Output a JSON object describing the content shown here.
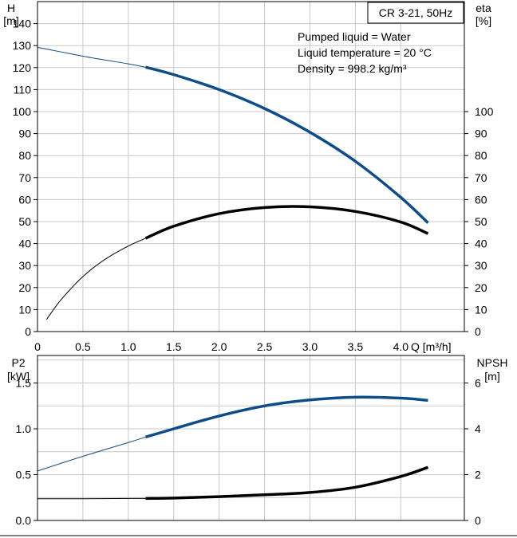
{
  "chart_data": [
    {
      "type": "line",
      "title": "CR 3-21, 50Hz",
      "annotations": [
        "Pumped liquid = Water",
        "Liquid temperature = 20 °C",
        "Density = 998.2 kg/m³"
      ],
      "xlabel": "Q [m³/h]",
      "ylabel_left": [
        "H",
        "[m]"
      ],
      "ylabel_right": [
        "eta",
        "[%]"
      ],
      "xlim": [
        0,
        4.7
      ],
      "ylim_left": [
        0,
        150
      ],
      "ylim_right": [
        0,
        150
      ],
      "x_ticks": [
        0,
        0.5,
        1.0,
        1.5,
        2.0,
        2.5,
        3.0,
        3.5,
        4.0
      ],
      "x_tick_labels": [
        "0",
        "0.5",
        "1.0",
        "1.5",
        "2.0",
        "2.5",
        "3.0",
        "3.5",
        "4.0"
      ],
      "y_left_ticks": [
        0,
        10,
        20,
        30,
        40,
        50,
        60,
        70,
        80,
        90,
        100,
        110,
        120,
        130,
        140
      ],
      "y_right_ticks": [
        0,
        10,
        20,
        30,
        40,
        50,
        60,
        70,
        80,
        90,
        100
      ],
      "grid": true,
      "series": [
        {
          "axis": "left",
          "color": "#0f4c8a",
          "x": [
            0.0,
            0.25,
            0.5,
            0.75,
            1.0,
            1.19,
            1.5,
            2.0,
            2.5,
            3.0,
            3.5,
            4.0,
            4.3
          ],
          "values": [
            129.2,
            127.2,
            125.2,
            123.4,
            121.7,
            120.2,
            116.8,
            110.0,
            101.4,
            90.6,
            77.4,
            61.0,
            49.4
          ],
          "thin_until": 1.19
        },
        {
          "axis": "right",
          "color": "#000000",
          "x": [
            0.1,
            0.25,
            0.5,
            0.75,
            1.0,
            1.19,
            1.5,
            2.0,
            2.5,
            3.0,
            3.5,
            4.0,
            4.3
          ],
          "values": [
            5.5,
            14.0,
            25.0,
            33.0,
            38.9,
            42.4,
            47.9,
            53.6,
            56.4,
            56.7,
            54.6,
            49.8,
            44.5
          ],
          "thin_until": 1.19
        }
      ]
    },
    {
      "type": "line",
      "xlim": [
        0,
        4.7
      ],
      "ylabel_left": [
        "P2",
        "[kW]"
      ],
      "ylabel_right": [
        "NPSH",
        "[m]"
      ],
      "ylim_left": [
        0,
        1.8
      ],
      "ylim_right": [
        0,
        7.2
      ],
      "y_left_ticks": [
        0,
        0.5,
        1.0,
        1.5
      ],
      "y_left_tick_labels": [
        "0.0",
        "0.5",
        "1.0",
        "1.5"
      ],
      "y_right_ticks": [
        0,
        2,
        4,
        6
      ],
      "grid": true,
      "series": [
        {
          "axis": "left",
          "color": "#0f4c8a",
          "x": [
            0.0,
            0.5,
            1.0,
            1.19,
            1.5,
            2.0,
            2.5,
            3.0,
            3.5,
            4.0,
            4.3
          ],
          "values": [
            0.54,
            0.7,
            0.85,
            0.91,
            1.0,
            1.14,
            1.25,
            1.315,
            1.345,
            1.335,
            1.31
          ],
          "thin_until": 1.19
        },
        {
          "axis": "right",
          "color": "#000000",
          "x": [
            0.0,
            0.5,
            1.0,
            1.19,
            1.5,
            2.0,
            2.5,
            3.0,
            3.5,
            4.0,
            4.3
          ],
          "values": [
            0.95,
            0.95,
            0.96,
            0.96,
            0.98,
            1.04,
            1.12,
            1.22,
            1.45,
            1.92,
            2.32
          ],
          "thin_until": 1.19
        }
      ]
    }
  ]
}
